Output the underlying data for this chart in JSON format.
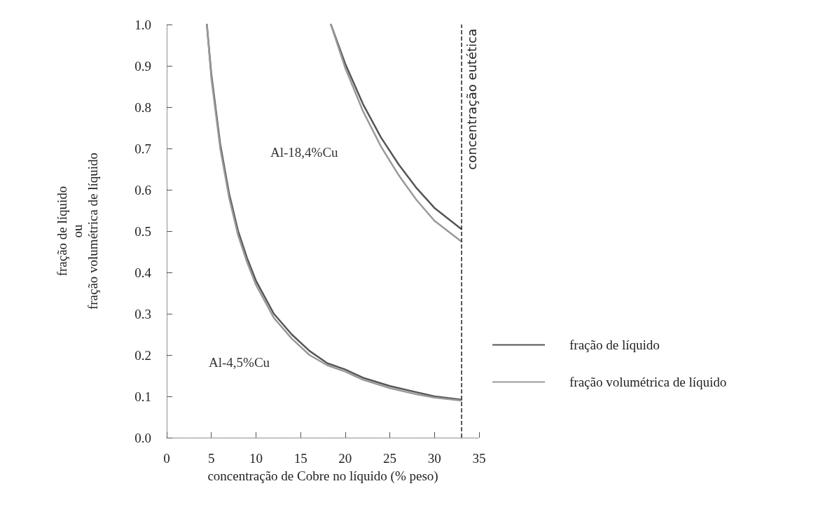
{
  "chart_data": {
    "type": "line",
    "xlabel": "concentração de Cobre no líquido (% peso)",
    "ylabel": "fração de líquido\nou\nfração volumétrica de líquido",
    "xlim": [
      0,
      35
    ],
    "xticks": [
      0,
      5,
      10,
      15,
      20,
      25,
      30,
      35
    ],
    "ylim": [
      0,
      1
    ],
    "yticks": [
      {
        "value": 0,
        "label": "0.0"
      },
      0.1,
      0.2,
      0.3,
      0.4,
      0.5,
      0.6,
      0.7,
      0.8,
      0.9,
      {
        "value": 1,
        "label": "1.0"
      }
    ],
    "grid": false,
    "legend": "right",
    "marker": "none",
    "line_style": "solid",
    "series": [
      {
        "name": "fração de líquido",
        "color": "#555555",
        "x": [
          4.5,
          5,
          6,
          7,
          8,
          9,
          10,
          12,
          14,
          16,
          18,
          20,
          22,
          25,
          28,
          30,
          33
        ],
        "values": [
          1.0,
          0.88,
          0.71,
          0.59,
          0.5,
          0.435,
          0.38,
          0.3,
          0.25,
          0.21,
          0.18,
          0.165,
          0.145,
          0.125,
          0.11,
          0.1,
          0.092
        ]
      },
      {
        "name": "fração volumétrica de líquido",
        "color": "#999999",
        "x": [
          4.5,
          5,
          6,
          7,
          8,
          9,
          10,
          12,
          14,
          16,
          18,
          20,
          22,
          25,
          28,
          30,
          33
        ],
        "values": [
          1.0,
          0.87,
          0.7,
          0.58,
          0.49,
          0.425,
          0.37,
          0.29,
          0.24,
          0.2,
          0.175,
          0.16,
          0.14,
          0.12,
          0.105,
          0.097,
          0.09
        ]
      },
      {
        "color": "#555555",
        "x": [
          18.4,
          20,
          22,
          24,
          26,
          28,
          30,
          33
        ],
        "values": [
          1.0,
          0.905,
          0.807,
          0.727,
          0.661,
          0.604,
          0.556,
          0.505
        ]
      },
      {
        "color": "#999999",
        "x": [
          18.4,
          20,
          22,
          24,
          26,
          28,
          30,
          33
        ],
        "values": [
          1.0,
          0.895,
          0.79,
          0.705,
          0.635,
          0.575,
          0.525,
          0.475
        ]
      }
    ],
    "ref_lines": [
      {
        "axis": "x",
        "value": 33,
        "label": "concentração eutética",
        "color": "#222222",
        "line_style": "dashed"
      }
    ],
    "annotations": [
      "Al-18,4%Cu",
      "Al-4,5%Cu"
    ]
  }
}
